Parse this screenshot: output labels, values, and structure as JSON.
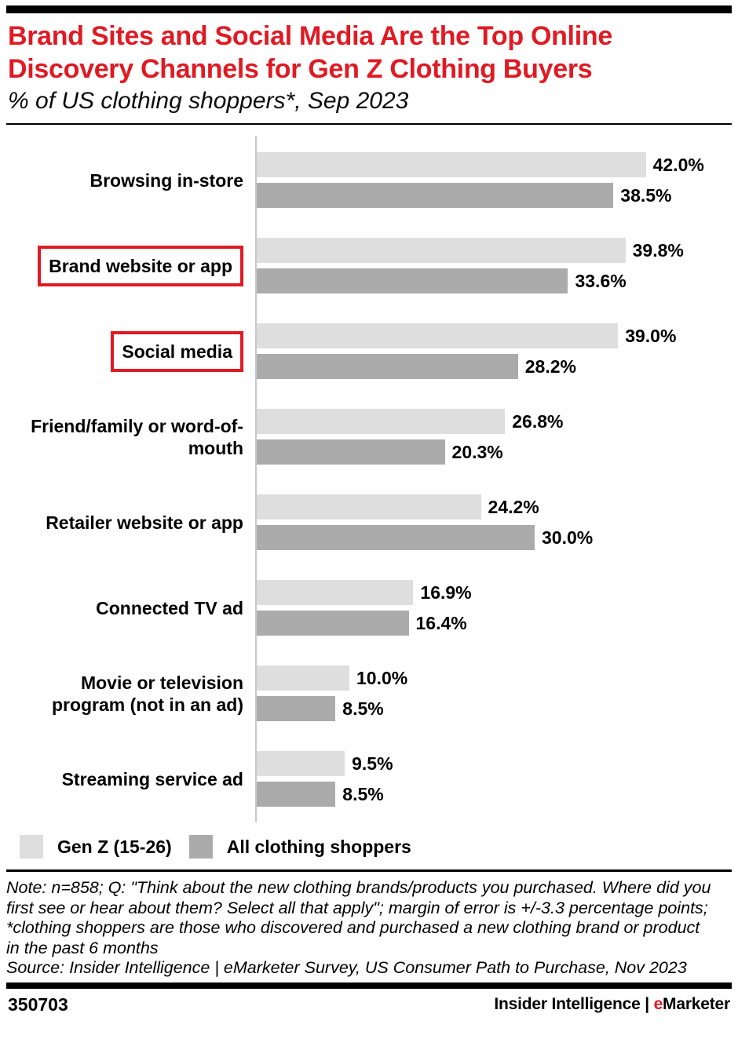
{
  "page": {
    "background": "#ffffff",
    "accent_red": "#e01a23"
  },
  "header": {
    "title": "Brand Sites and Social Media Are the Top Online Discovery Channels for Gen Z Clothing Buyers",
    "subtitle": "% of US clothing shoppers*, Sep 2023"
  },
  "chart_data": {
    "type": "bar",
    "orientation": "horizontal",
    "unit": "%",
    "categories": [
      "Browsing in-store",
      "Brand website or app",
      "Social media",
      "Friend/family or word-of-mouth",
      "Retailer website or app",
      "Connected TV ad",
      "Movie or television program (not in an ad)",
      "Streaming service ad"
    ],
    "series": [
      {
        "name": "Gen Z (15-26)",
        "color": "#dedede",
        "values": [
          42.0,
          39.8,
          39.0,
          26.8,
          24.2,
          16.9,
          10.0,
          9.5
        ]
      },
      {
        "name": "All clothing shoppers",
        "color": "#ababab",
        "values": [
          38.5,
          33.6,
          28.2,
          20.3,
          30.0,
          16.4,
          8.5,
          8.5
        ]
      }
    ],
    "highlighted_categories": [
      "Brand website or app",
      "Social media"
    ],
    "highlight_box_color": "#e01a23",
    "axis_line_color": "#c9c9c9",
    "value_labels": "outside-end",
    "xlim": [
      0,
      50
    ],
    "grid": false,
    "legend_position": "bottom"
  },
  "legend": {
    "items": [
      {
        "label": "Gen Z (15-26)",
        "color": "#dedede"
      },
      {
        "label": "All clothing shoppers",
        "color": "#ababab"
      }
    ]
  },
  "notes": {
    "note": "Note: n=858; Q: \"Think about the new clothing brands/products you purchased. Where did you first see or hear about them? Select all that apply\"; margin of error is +/-3.3 percentage points; *clothing shoppers are those who discovered and purchased a new clothing brand or product in the past 6 months",
    "source": "Source: Insider Intelligence | eMarketer Survey, US Consumer Path to Purchase, Nov 2023"
  },
  "footer": {
    "chart_id": "350703",
    "brand_left": "Insider Intelligence",
    "brand_separator": "|",
    "brand_e": "e",
    "brand_rest": "Marketer"
  }
}
